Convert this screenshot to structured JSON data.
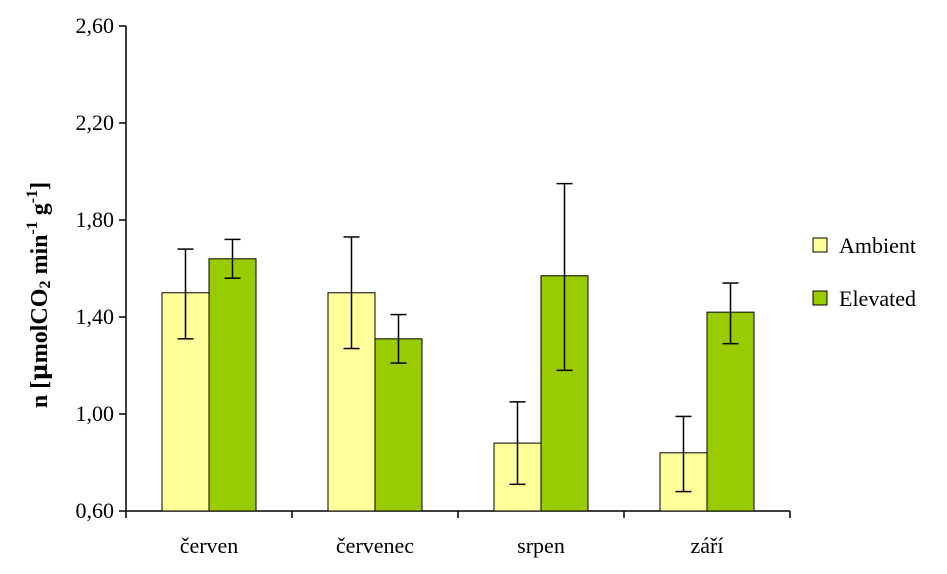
{
  "chart_data": {
    "type": "bar",
    "title": "",
    "xlabel": "",
    "ylabel_parts": {
      "prefix": "n [",
      "mu": "μ",
      "molco": "molCO",
      "sub2": "2",
      "min": " min",
      "exp1": "-1",
      "g": " g",
      "exp2": "-1",
      "suffix": "]"
    },
    "categories": [
      "červen",
      "červenec",
      "srpen",
      "září"
    ],
    "ylim": [
      0.6,
      2.6
    ],
    "yticks": [
      0.6,
      1.0,
      1.4,
      1.8,
      2.2,
      2.6
    ],
    "ytick_labels": [
      "0,60",
      "1,00",
      "1,40",
      "1,80",
      "2,20",
      "2,60"
    ],
    "grid": false,
    "legend_position": "right",
    "series": [
      {
        "name": "Ambient",
        "color": "#ffff99",
        "values": [
          1.5,
          1.5,
          0.88,
          0.84
        ],
        "err_low": [
          1.31,
          1.27,
          0.71,
          0.68
        ],
        "err_high": [
          1.68,
          1.73,
          1.05,
          0.99
        ]
      },
      {
        "name": "Elevated",
        "color": "#99cc00",
        "values": [
          1.64,
          1.31,
          1.57,
          1.42
        ],
        "err_low": [
          1.56,
          1.21,
          1.18,
          1.29
        ],
        "err_high": [
          1.72,
          1.41,
          1.95,
          1.54
        ]
      }
    ]
  }
}
